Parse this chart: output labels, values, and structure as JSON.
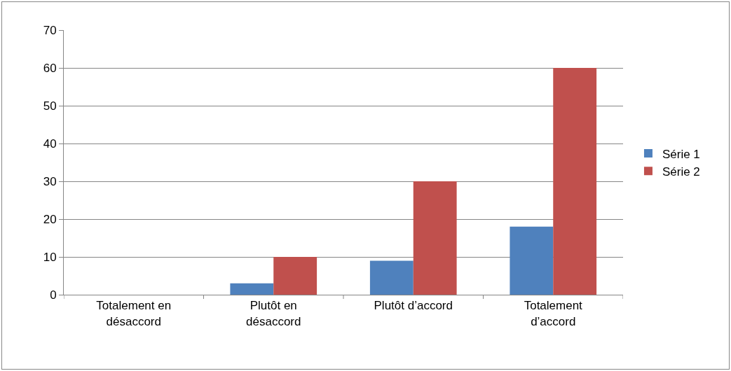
{
  "chart_data": {
    "type": "bar",
    "categories": [
      "Totalement en désaccord",
      "Plutôt en désaccord",
      "Plutôt d’accord",
      "Totalement d’accord"
    ],
    "series": [
      {
        "name": "Série 1",
        "color": "#4f81bd",
        "values": [
          0,
          3,
          9,
          18
        ]
      },
      {
        "name": "Série 2",
        "color": "#c0504d",
        "values": [
          0,
          10,
          30,
          60
        ]
      }
    ],
    "ylim": [
      0,
      70
    ],
    "yticks": [
      0,
      10,
      20,
      30,
      40,
      50,
      60,
      70
    ],
    "grid": "y",
    "legend": "right"
  }
}
